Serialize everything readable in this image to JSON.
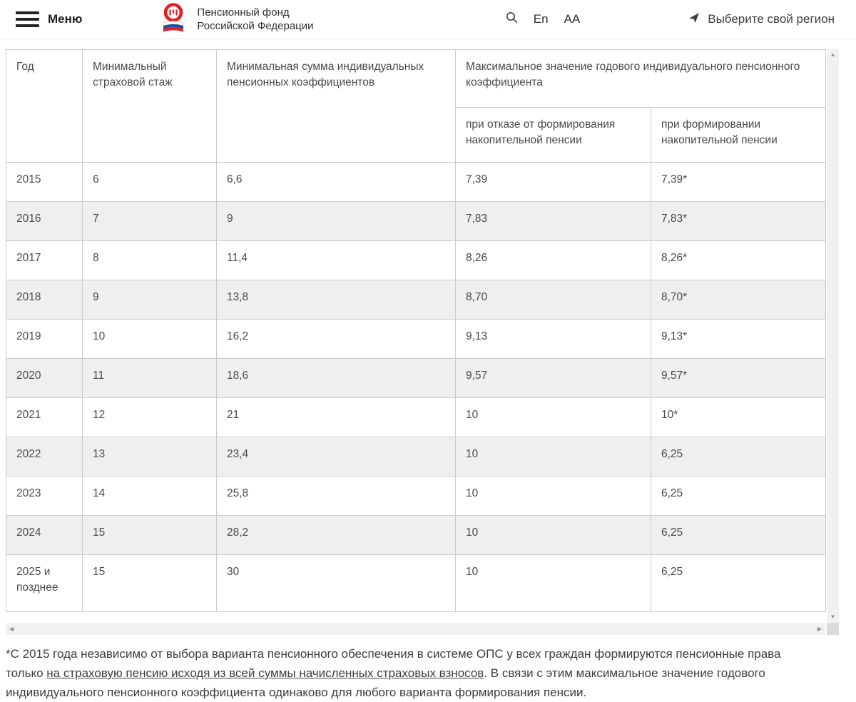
{
  "header": {
    "menu_label": "Меню",
    "logo_title_line1": "Пенсионный фонд",
    "logo_title_line2": "Российской Федерации",
    "lang_toggle": "En",
    "font_size_toggle": "AA",
    "region_selector": "Выберите свой регион"
  },
  "icons": {
    "scroll_up": "▲",
    "scroll_down": "▼",
    "scroll_left": "◀",
    "scroll_right": "▶"
  },
  "colors": {
    "logo_red": "#e31e24",
    "flag_blue": "#1d4f9c",
    "flag_red": "#d8232a",
    "row_alt_bg": "#efefef",
    "table_border": "#cbcbcb",
    "text": "#4a4a4a"
  },
  "table": {
    "columns": {
      "year": "Год",
      "min_service": "Минимальный страховой стаж",
      "min_coeff_sum": "Минимальная сумма индивидуальных пенсионных коэффициентов",
      "max_coeff_group": "Максимальное значение годового индивидуального пенсионного коэффициента",
      "max_coeff_optout": "при отказе от формирования накопительной пенсии",
      "max_coeff_funded": "при формировании накопительной пенсии"
    },
    "rows": [
      [
        "2015",
        "6",
        "6,6",
        "7,39",
        "7,39*"
      ],
      [
        "2016",
        "7",
        "9",
        "7,83",
        "7,83*"
      ],
      [
        "2017",
        "8",
        "11,4",
        "8,26",
        "8,26*"
      ],
      [
        "2018",
        "9",
        "13,8",
        "8,70",
        "8,70*"
      ],
      [
        "2019",
        "10",
        "16,2",
        "9,13",
        "9,13*"
      ],
      [
        "2020",
        "11",
        "18,6",
        "9,57",
        "9,57*"
      ],
      [
        "2021",
        "12",
        "21",
        "10",
        "10*"
      ],
      [
        "2022",
        "13",
        "23,4",
        "10",
        "6,25"
      ],
      [
        "2023",
        "14",
        "25,8",
        "10",
        "6,25"
      ],
      [
        "2024",
        "15",
        "28,2",
        "10",
        "6,25"
      ],
      [
        "2025 и позднее",
        "15",
        "30",
        "10",
        "6,25"
      ]
    ]
  },
  "footnote": {
    "text_before_link": "*С 2015 года независимо от выбора варианта пенсионного обеспечения в системе ОПС у всех граждан формируются пенсионные права только ",
    "link_text": "на страховую пенсию исходя из всей суммы начисленных страховых взносов",
    "text_after_link": ". В связи с этим максимальное значение годового индивидуального пенсионного коэффициента одинаково для любого варианта формирования пенсии."
  }
}
